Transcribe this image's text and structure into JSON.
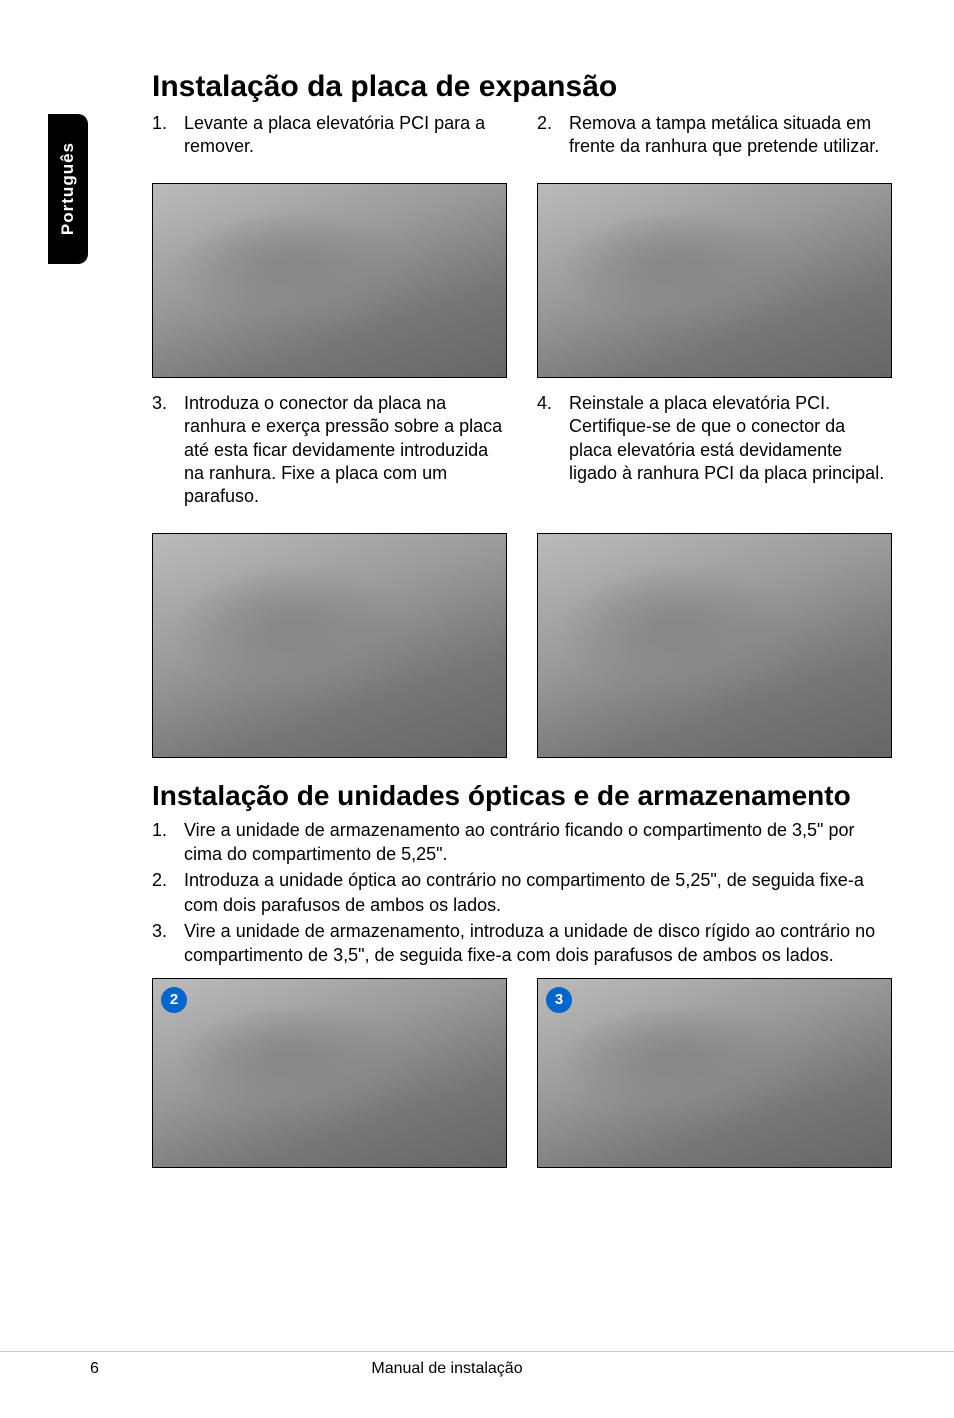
{
  "sideTab": "Português",
  "section1": {
    "heading": "Instalação da placa de expansão",
    "steps": [
      {
        "num": "1.",
        "text": "Levante a placa elevatória PCI para a remover."
      },
      {
        "num": "2.",
        "text": "Remova a tampa metálica situada em frente da ranhura que pretende utilizar."
      },
      {
        "num": "3.",
        "text": "Introduza o conector da placa na ranhura e exerça pressão sobre a placa até esta ficar devidamente introduzida na ranhura. Fixe a placa com um parafuso."
      },
      {
        "num": "4.",
        "text": "Reinstale a placa elevatória PCI. Certifique-se de que o conector da placa elevatória está devidamente ligado à ranhura PCI da placa principal."
      }
    ]
  },
  "section2": {
    "heading": "Instalação de unidades ópticas e de armazenamento",
    "steps": [
      {
        "num": "1.",
        "text": "Vire a unidade de armazenamento ao contrário ficando o compartimento de 3,5\" por cima do compartimento de 5,25\"."
      },
      {
        "num": "2.",
        "text": "Introduza a unidade óptica ao contrário no compartimento de 5,25\", de seguida fixe-a com dois parafusos de ambos os lados."
      },
      {
        "num": "3.",
        "text": "Vire a unidade de armazenamento, introduza a unidade de disco rígido ao contrário no compartimento de 3,5\", de seguida fixe-a com dois parafusos de ambos os lados."
      }
    ],
    "badges": [
      "2",
      "3"
    ]
  },
  "footer": {
    "pageNum": "6",
    "title": "Manual de instalação"
  },
  "colors": {
    "badgeBg": "#0066cc",
    "badgeText": "#ffffff",
    "sideTabBg": "#000000",
    "sideTabText": "#ffffff"
  }
}
